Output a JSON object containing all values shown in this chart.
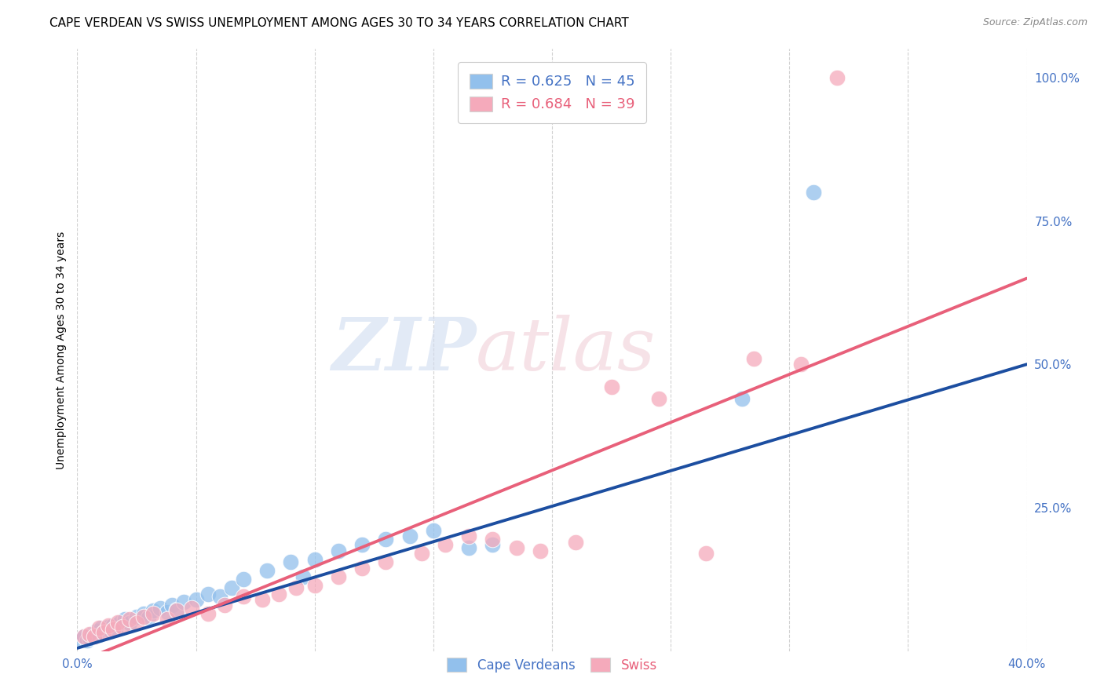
{
  "title": "CAPE VERDEAN VS SWISS UNEMPLOYMENT AMONG AGES 30 TO 34 YEARS CORRELATION CHART",
  "source": "Source: ZipAtlas.com",
  "ylabel": "Unemployment Among Ages 30 to 34 years",
  "xlim": [
    0.0,
    0.4
  ],
  "ylim": [
    0.0,
    1.05
  ],
  "xticks": [
    0.0,
    0.05,
    0.1,
    0.15,
    0.2,
    0.25,
    0.3,
    0.35,
    0.4
  ],
  "xticklabels": [
    "0.0%",
    "",
    "",
    "",
    "",
    "",
    "",
    "",
    "40.0%"
  ],
  "yticks_right": [
    0.0,
    0.25,
    0.5,
    0.75,
    1.0
  ],
  "yticklabels_right": [
    "",
    "25.0%",
    "50.0%",
    "75.0%",
    "100.0%"
  ],
  "blue_R": 0.625,
  "blue_N": 45,
  "pink_R": 0.684,
  "pink_N": 39,
  "blue_color": "#92C0EC",
  "pink_color": "#F5AABB",
  "blue_line_color": "#1C4EA0",
  "pink_line_color": "#E8607A",
  "label_color": "#4472C4",
  "pink_label_color": "#E8607A",
  "watermark_color": "#D0DCF0",
  "watermark_pink": "#F0D0D8",
  "blue_line_y0": 0.005,
  "blue_line_y1": 0.5,
  "pink_line_y0": -0.02,
  "pink_line_y1": 0.65,
  "blue_points_x": [
    0.002,
    0.003,
    0.004,
    0.005,
    0.006,
    0.007,
    0.008,
    0.009,
    0.01,
    0.011,
    0.012,
    0.013,
    0.014,
    0.015,
    0.016,
    0.018,
    0.02,
    0.022,
    0.025,
    0.028,
    0.03,
    0.032,
    0.035,
    0.038,
    0.04,
    0.042,
    0.045,
    0.05,
    0.055,
    0.06,
    0.065,
    0.07,
    0.08,
    0.09,
    0.095,
    0.1,
    0.11,
    0.12,
    0.13,
    0.14,
    0.15,
    0.165,
    0.175,
    0.28,
    0.31
  ],
  "blue_points_y": [
    0.02,
    0.025,
    0.018,
    0.022,
    0.03,
    0.025,
    0.035,
    0.028,
    0.04,
    0.032,
    0.038,
    0.042,
    0.035,
    0.045,
    0.038,
    0.05,
    0.055,
    0.048,
    0.06,
    0.065,
    0.058,
    0.07,
    0.075,
    0.068,
    0.08,
    0.072,
    0.085,
    0.09,
    0.1,
    0.095,
    0.11,
    0.125,
    0.14,
    0.155,
    0.13,
    0.16,
    0.175,
    0.185,
    0.195,
    0.2,
    0.21,
    0.18,
    0.185,
    0.44,
    0.8
  ],
  "pink_points_x": [
    0.003,
    0.005,
    0.007,
    0.009,
    0.011,
    0.013,
    0.015,
    0.017,
    0.019,
    0.022,
    0.025,
    0.028,
    0.032,
    0.038,
    0.042,
    0.048,
    0.055,
    0.062,
    0.07,
    0.078,
    0.085,
    0.092,
    0.1,
    0.11,
    0.12,
    0.13,
    0.145,
    0.155,
    0.165,
    0.175,
    0.185,
    0.195,
    0.21,
    0.225,
    0.245,
    0.265,
    0.285,
    0.305,
    0.32
  ],
  "pink_points_y": [
    0.025,
    0.03,
    0.025,
    0.04,
    0.032,
    0.045,
    0.038,
    0.05,
    0.042,
    0.055,
    0.048,
    0.06,
    0.065,
    0.055,
    0.07,
    0.075,
    0.065,
    0.08,
    0.095,
    0.09,
    0.1,
    0.11,
    0.115,
    0.13,
    0.145,
    0.155,
    0.17,
    0.185,
    0.2,
    0.195,
    0.18,
    0.175,
    0.19,
    0.46,
    0.44,
    0.17,
    0.51,
    0.5,
    1.0
  ],
  "title_fontsize": 11,
  "axis_label_fontsize": 10,
  "tick_fontsize": 11,
  "background_color": "#FFFFFF",
  "grid_color": "#CCCCCC"
}
